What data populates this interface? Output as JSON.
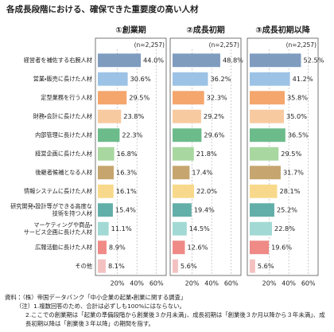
{
  "chart_data": {
    "type": "bar",
    "orientation": "horizontal",
    "title": "各成長段階における、確保できた重要度の高い人材",
    "categories": [
      "経営者を補佐する右腕人材",
      "営業・販売に長けた人材",
      "定型業務を行う人材",
      "財務・会計に長けた人材",
      "内部管理に長けた人材",
      "経営企画に長けた人材",
      "後継者候補となる人材",
      "情報システムに長けた人材",
      "研究開発・設計等ができる高度な\n技術を持つ人材",
      "マーケティングや商品・\nサービス企画に長けた人材",
      "広報活動に長けた人材",
      "その他"
    ],
    "colors": [
      "#7f9cbf",
      "#9cc2e5",
      "#f4a66d",
      "#f8caa0",
      "#6cbb8b",
      "#a8d7a0",
      "#c6a56f",
      "#f8d98b",
      "#62aea9",
      "#a2d9d4",
      "#ef8a86",
      "#f4c1c1"
    ],
    "xlim": [
      0,
      70
    ],
    "xticks": [
      {
        "value": 20,
        "label": "20%"
      },
      {
        "value": 40,
        "label": "40%"
      },
      {
        "value": 60,
        "label": "60%"
      }
    ],
    "grid": true,
    "panels": [
      {
        "title": "①創業期",
        "note": "(n=2,257)",
        "values": [
          44.0,
          30.6,
          29.5,
          23.8,
          22.3,
          16.8,
          16.3,
          16.1,
          15.4,
          11.1,
          8.9,
          8.1
        ],
        "value_labels": [
          "44.0%",
          "30.6%",
          "29.5%",
          "23.8%",
          "22.3%",
          "16.8%",
          "16.3%",
          "16.1%",
          "15.4%",
          "11.1%",
          "8.9%",
          "8.1%"
        ]
      },
      {
        "title": "②成長初期",
        "note": "(n=2,257)",
        "values": [
          48.8,
          36.2,
          32.3,
          29.2,
          29.6,
          21.8,
          17.4,
          22.0,
          19.4,
          14.5,
          12.6,
          5.6
        ],
        "value_labels": [
          "48.8%",
          "36.2%",
          "32.3%",
          "29.2%",
          "29.6%",
          "21.8%",
          "17.4%",
          "22.0%",
          "19.4%",
          "14.5%",
          "12.6%",
          "5.6%"
        ]
      },
      {
        "title": "③成長初期以降",
        "note": "(n=2,257)",
        "values": [
          52.5,
          41.2,
          35.8,
          35.0,
          36.5,
          29.5,
          31.7,
          28.1,
          25.2,
          22.8,
          19.6,
          5.6
        ],
        "value_labels": [
          "52.5%",
          "41.2%",
          "35.8%",
          "35.0%",
          "36.5%",
          "29.5%",
          "31.7%",
          "28.1%",
          "25.2%",
          "22.8%",
          "19.6%",
          "5.6%"
        ]
      }
    ],
    "notes": [
      "資料：（株）帝国データバンク「中小企業の起業・創業に関する調査」",
      "（注）1.複数回答のため、合計は必ずしも100%にはならない。",
      "2.ここでの創業期は「起業の準備段階から創業後３か月未満」、成長初期は「創業後３か月以降から３年未満」、成長初期以降は「創業後３年以降」の期間を指す。"
    ]
  }
}
